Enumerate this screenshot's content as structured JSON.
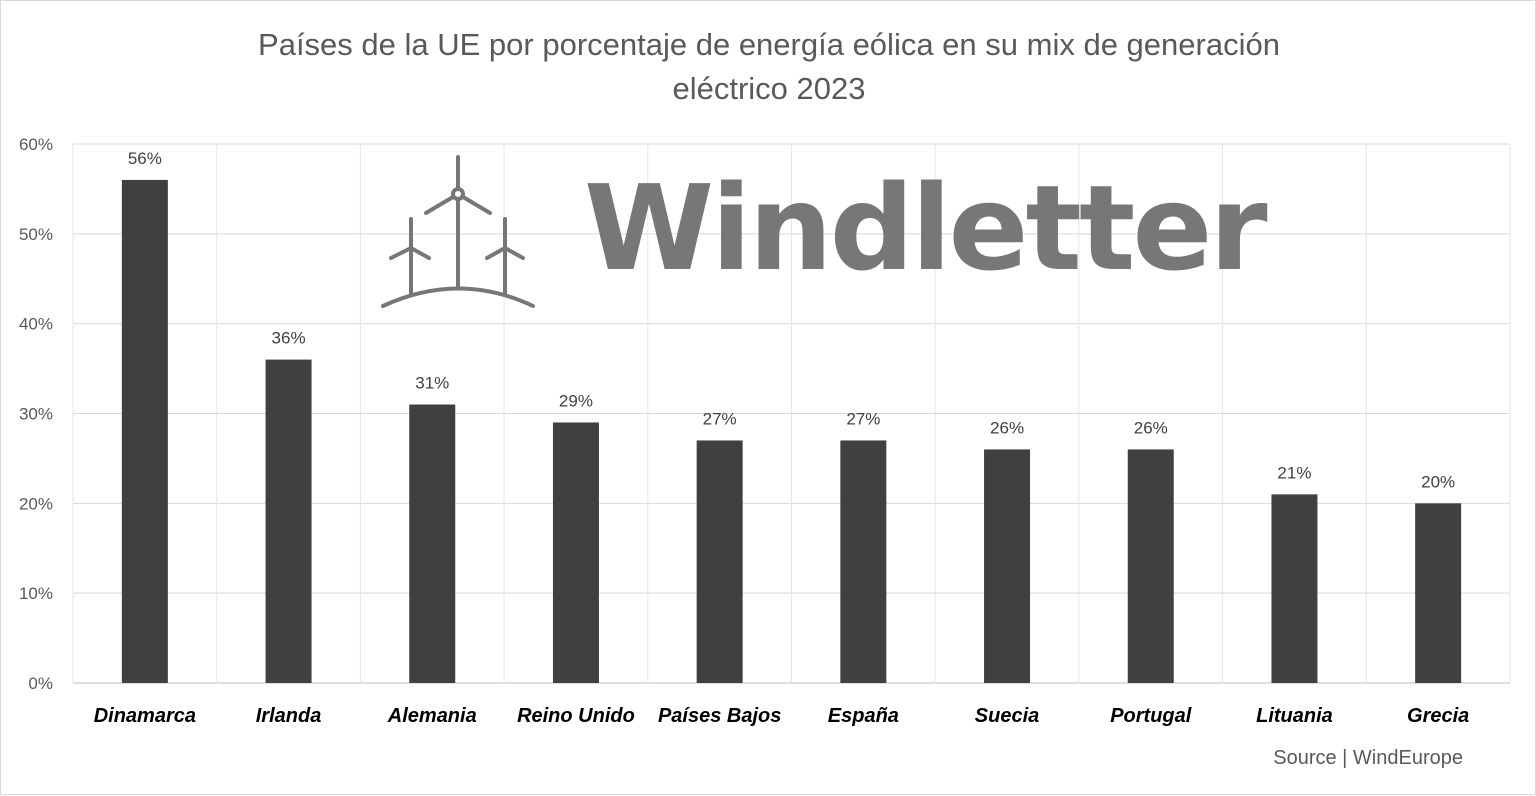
{
  "chart_data": {
    "type": "bar",
    "title": "Países de la UE por porcentaje de energía eólica en su mix de generación eléctrico 2023",
    "title_lines": [
      "Países de la UE por porcentaje de energía eólica en su mix de generación",
      "eléctrico 2023"
    ],
    "categories": [
      "Dinamarca",
      "Irlanda",
      "Alemania",
      "Reino Unido",
      "Países Bajos",
      "España",
      "Suecia",
      "Portugal",
      "Lituania",
      "Grecia"
    ],
    "values": [
      56,
      36,
      31,
      29,
      27,
      27,
      26,
      26,
      21,
      20
    ],
    "data_labels": [
      "56%",
      "36%",
      "31%",
      "29%",
      "27%",
      "27%",
      "26%",
      "26%",
      "21%",
      "20%"
    ],
    "yticks": [
      0,
      10,
      20,
      30,
      40,
      50,
      60
    ],
    "ytick_labels": [
      "0%",
      "10%",
      "20%",
      "30%",
      "40%",
      "50%",
      "60%"
    ],
    "ylim": [
      0,
      60
    ],
    "xlabel": "",
    "ylabel": "",
    "grid": true,
    "bar_color": "#404040"
  },
  "watermark": {
    "text": "Windletter",
    "icon": "wind-turbines-icon"
  },
  "source": "Source | WindEurope"
}
